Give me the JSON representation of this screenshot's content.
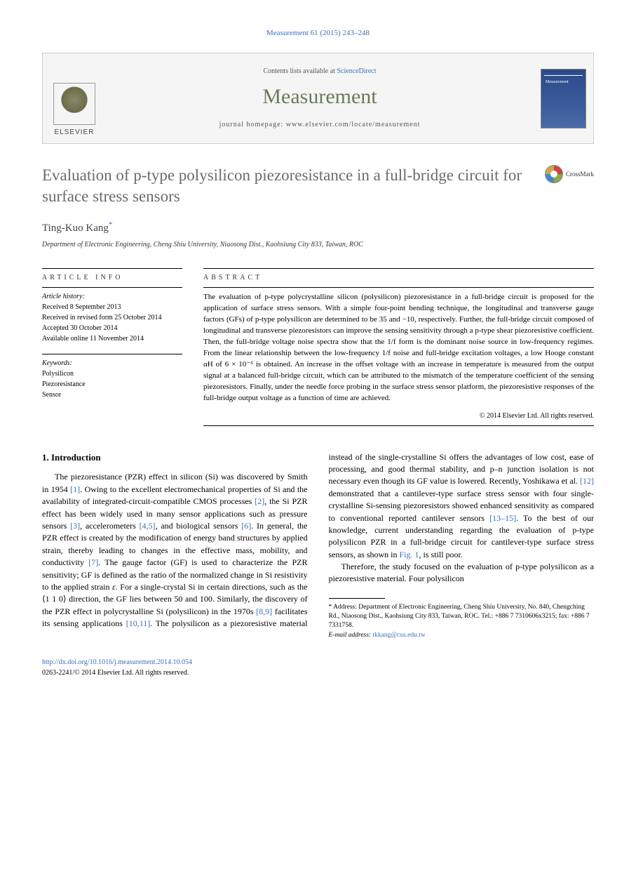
{
  "running_header": "Measurement 61 (2015) 243–248",
  "banner": {
    "contents_prefix": "Contents lists available at ",
    "contents_link": "ScienceDirect",
    "journal_name": "Measurement",
    "homepage_prefix": "journal homepage: ",
    "homepage_url": "www.elsevier.com/locate/measurement",
    "publisher": "ELSEVIER",
    "cover_label": "Measurement"
  },
  "crossmark_label": "CrossMark",
  "title": "Evaluation of p-type polysilicon piezoresistance in a full-bridge circuit for surface stress sensors",
  "author": {
    "name": "Ting-Kuo Kang",
    "marker": "*"
  },
  "affiliation": "Department of Electronic Engineering, Cheng Shiu University, Niaosong Dist., Kaohsiung City 833, Taiwan, ROC",
  "info": {
    "label": "ARTICLE INFO",
    "history_label": "Article history:",
    "history": [
      "Received 8 September 2013",
      "Received in revised form 25 October 2014",
      "Accepted 30 October 2014",
      "Available online 11 November 2014"
    ],
    "keywords_label": "Keywords:",
    "keywords": [
      "Polysilicon",
      "Piezoresistance",
      "Sensor"
    ]
  },
  "abstract": {
    "label": "ABSTRACT",
    "text": "The evaluation of p-type polycrystalline silicon (polysilicon) piezoresistance in a full-bridge circuit is proposed for the application of surface stress sensors. With a simple four-point bending technique, the longitudinal and transverse gauge factors (GFs) of p-type polysilicon are determined to be 35 and −10, respectively. Further, the full-bridge circuit composed of longitudinal and transverse piezoresistors can improve the sensing sensitivity through a p-type shear piezoresistive coefficient. Then, the full-bridge voltage noise spectra show that the 1/f form is the dominant noise source in low-frequency regimes. From the linear relationship between the low-frequency 1/f noise and full-bridge excitation voltages, a low Hooge constant αH of 6 × 10⁻⁵ is obtained. An increase in the offset voltage with an increase in temperature is measured from the output signal at a balanced full-bridge circuit, which can be attributed to the mismatch of the temperature coefficient of the sensing piezoresistors. Finally, under the needle force probing in the surface stress sensor platform, the piezoresistive responses of the full-bridge output voltage as a function of time are achieved.",
    "copyright": "© 2014 Elsevier Ltd. All rights reserved."
  },
  "body": {
    "heading": "1. Introduction",
    "para1_a": "The piezoresistance (PZR) effect in silicon (Si) was discovered by Smith in 1954 ",
    "ref1": "[1]",
    "para1_b": ". Owing to the excellent electromechanical properties of Si and the availability of integrated-circuit-compatible CMOS processes ",
    "ref2": "[2]",
    "para1_c": ", the Si PZR effect has been widely used in many sensor applications such as pressure sensors ",
    "ref3": "[3]",
    "para1_d": ", accelerometers ",
    "ref45": "[4,5]",
    "para1_e": ", and biological sensors ",
    "ref6": "[6]",
    "para1_f": ". In general, the PZR effect is created by the modification of energy band structures by applied strain, thereby leading to changes in the effective mass, mobility, and conductivity ",
    "ref7": "[7]",
    "para1_g": ". The gauge factor (GF) is used to characterize the PZR sensitivity; GF is defined as the ratio of the normalized change in Si ",
    "para2_a": "resistivity to the applied strain ",
    "eps": "ε",
    "para2_b": ". For a single-crystal Si in certain directions, such as the ⟨1 1 0⟩ direction, the GF lies between 50 and 100. Similarly, the discovery of the PZR effect in polycrystalline Si (polysilicon) in the 1970s ",
    "ref89": "[8,9]",
    "para2_c": " facilitates its sensing applications ",
    "ref1011": "[10,11]",
    "para2_d": ". The polysilicon as a piezoresistive material instead of the single-crystalline Si offers the advantages of low cost, ease of processing, and good thermal stability, and p–n junction isolation is not necessary even though its GF value is lowered. Recently, Yoshikawa et al. ",
    "ref12": "[12]",
    "para2_e": " demonstrated that a cantilever-type surface stress sensor with four single-crystalline Si-sensing piezoresistors showed enhanced sensitivity as compared to conventional reported cantilever sensors ",
    "ref1315": "[13–15]",
    "para2_f": ". To the best of our knowledge, current understanding regarding the evaluation of p-type polysilicon PZR in a full-bridge circuit for cantilever-type surface stress sensors, as shown in ",
    "fig1": "Fig. 1",
    "para2_g": ", is still poor.",
    "para3": "Therefore, the study focused on the evaluation of p-type polysilicon as a piezoresistive material. Four polysilicon"
  },
  "footnote": {
    "marker": "*",
    "address_label": "Address:",
    "address": " Department of Electronic Engineering, Cheng Shiu University, No. 840, Chengching Rd., Niaosong Dist., Kaohsiung City 833, Taiwan, ROC. Tel.: +886 7 7310606x3215; fax: +886 7 7331758.",
    "email_label": "E-mail address: ",
    "email": "tkkang@csu.edu.tw"
  },
  "footer": {
    "doi": "http://dx.doi.org/10.1016/j.measurement.2014.10.054",
    "issn_copyright": "0263-2241/© 2014 Elsevier Ltd. All rights reserved."
  },
  "colors": {
    "link": "#3a6fb7",
    "title_gray": "#6b6b6b",
    "journal_green": "#6b7a5a"
  }
}
